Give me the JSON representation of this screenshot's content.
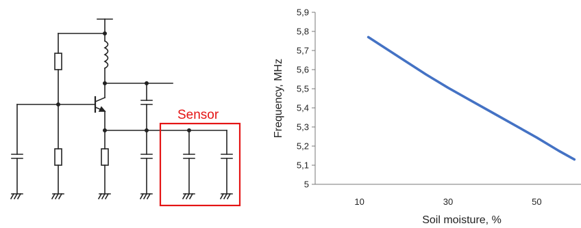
{
  "circuit": {
    "sensor_label": "Sensor",
    "sensor_color": "#e41414"
  },
  "chart_data": {
    "type": "line",
    "xlabel": "Soil moisture, %",
    "ylabel": "Frequency,  MHz",
    "xlim": [
      0,
      60
    ],
    "ylim": [
      5,
      5.9
    ],
    "x_ticks": [
      10,
      30,
      50
    ],
    "x_tick_labels": [
      "10",
      "30",
      "50"
    ],
    "y_ticks": [
      5,
      5.1,
      5.2,
      5.3,
      5.4,
      5.5,
      5.6,
      5.7,
      5.8,
      5.9
    ],
    "y_tick_labels": [
      "5",
      "5,1",
      "5,2",
      "5,3",
      "5,4",
      "5,5",
      "5,6",
      "5,7",
      "5,8",
      "5,9"
    ],
    "grid": false,
    "legend": "none",
    "series": [
      {
        "color": "#4472c4",
        "x": [
          12,
          15,
          20,
          25,
          30,
          35,
          40,
          45,
          50,
          55,
          58.5
        ],
        "y": [
          5.77,
          5.725,
          5.65,
          5.575,
          5.505,
          5.44,
          5.375,
          5.31,
          5.245,
          5.175,
          5.13
        ]
      }
    ]
  }
}
